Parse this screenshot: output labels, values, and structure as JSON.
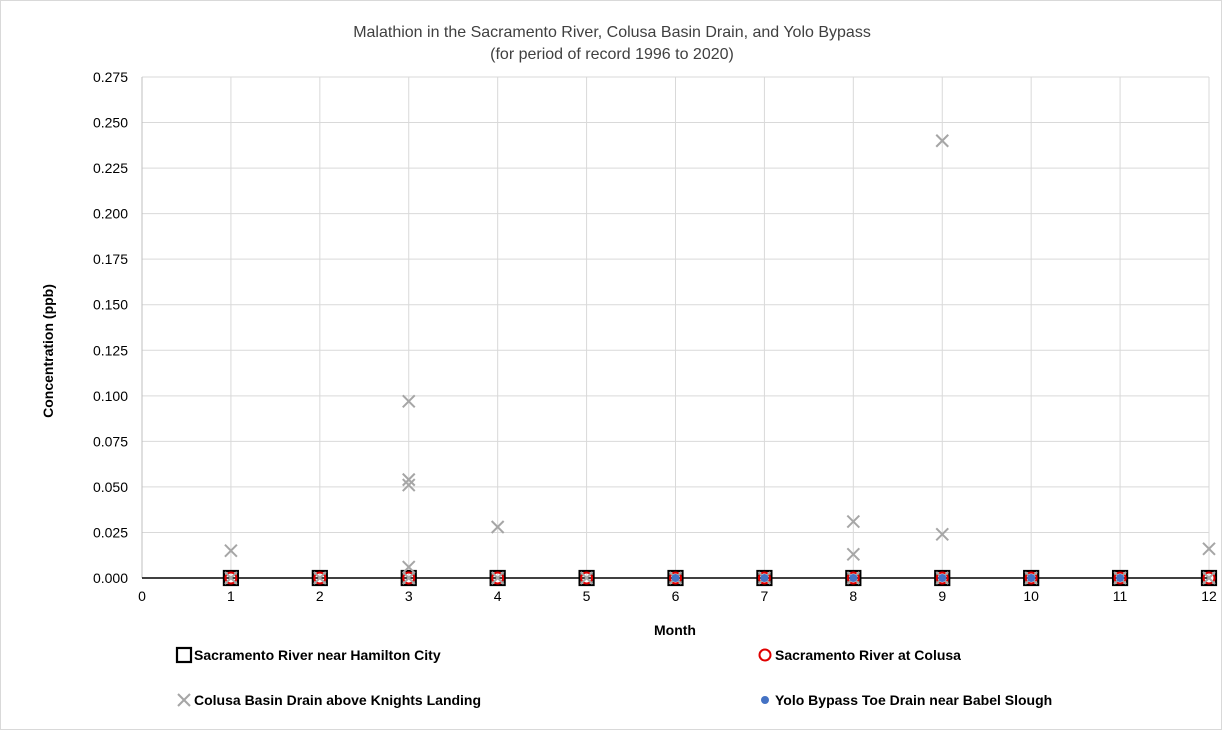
{
  "chart_data": {
    "type": "scatter",
    "title": "Malathion in the Sacramento River, Colusa Basin Drain, and Yolo Bypass",
    "subtitle": "(for period of record 1996 to 2020)",
    "xlabel": "Month",
    "ylabel": "Concentration (ppb)",
    "xlim": [
      0,
      12
    ],
    "ylim": [
      0,
      0.275
    ],
    "x_ticks": [
      0,
      1,
      2,
      3,
      4,
      5,
      6,
      7,
      8,
      9,
      10,
      11,
      12
    ],
    "y_ticks": [
      "0.000",
      "0.025",
      "0.050",
      "0.075",
      "0.100",
      "0.125",
      "0.150",
      "0.175",
      "0.200",
      "0.225",
      "0.250",
      "0.275"
    ],
    "grid": true,
    "legend_position": "bottom",
    "series": [
      {
        "name": "Sacramento River near Hamilton City",
        "marker": "open-square",
        "color": "#000000",
        "points": [
          [
            1,
            0
          ],
          [
            2,
            0
          ],
          [
            3,
            0
          ],
          [
            4,
            0
          ],
          [
            5,
            0
          ],
          [
            6,
            0
          ],
          [
            7,
            0
          ],
          [
            8,
            0
          ],
          [
            9,
            0
          ],
          [
            10,
            0
          ],
          [
            11,
            0
          ],
          [
            12,
            0
          ]
        ]
      },
      {
        "name": "Sacramento River at Colusa",
        "marker": "open-circle",
        "color": "#e00000",
        "points": [
          [
            1,
            0
          ],
          [
            2,
            0
          ],
          [
            3,
            0
          ],
          [
            4,
            0
          ],
          [
            5,
            0
          ],
          [
            6,
            0
          ],
          [
            7,
            0
          ],
          [
            8,
            0
          ],
          [
            9,
            0
          ],
          [
            10,
            0
          ],
          [
            11,
            0
          ],
          [
            12,
            0
          ]
        ]
      },
      {
        "name": "Colusa Basin Drain above Knights Landing",
        "marker": "x",
        "color": "#a6a6a6",
        "points": [
          [
            1,
            0.015
          ],
          [
            1,
            0
          ],
          [
            2,
            0
          ],
          [
            3,
            0.097
          ],
          [
            3,
            0.054
          ],
          [
            3,
            0.051
          ],
          [
            3,
            0.006
          ],
          [
            3,
            0
          ],
          [
            4,
            0.028
          ],
          [
            4,
            0
          ],
          [
            5,
            0
          ],
          [
            6,
            0
          ],
          [
            7,
            0
          ],
          [
            8,
            0.031
          ],
          [
            8,
            0.013
          ],
          [
            8,
            0
          ],
          [
            9,
            0.24
          ],
          [
            9,
            0.024
          ],
          [
            9,
            0
          ],
          [
            10,
            0
          ],
          [
            11,
            0
          ],
          [
            12,
            0.016
          ],
          [
            12,
            0
          ]
        ]
      },
      {
        "name": "Yolo Bypass Toe Drain near Babel Slough",
        "marker": "filled-circle",
        "color": "#4472c4",
        "points": [
          [
            6,
            0
          ],
          [
            7,
            0
          ],
          [
            8,
            0
          ],
          [
            9,
            0
          ],
          [
            10,
            0
          ],
          [
            11,
            0
          ]
        ]
      }
    ]
  }
}
